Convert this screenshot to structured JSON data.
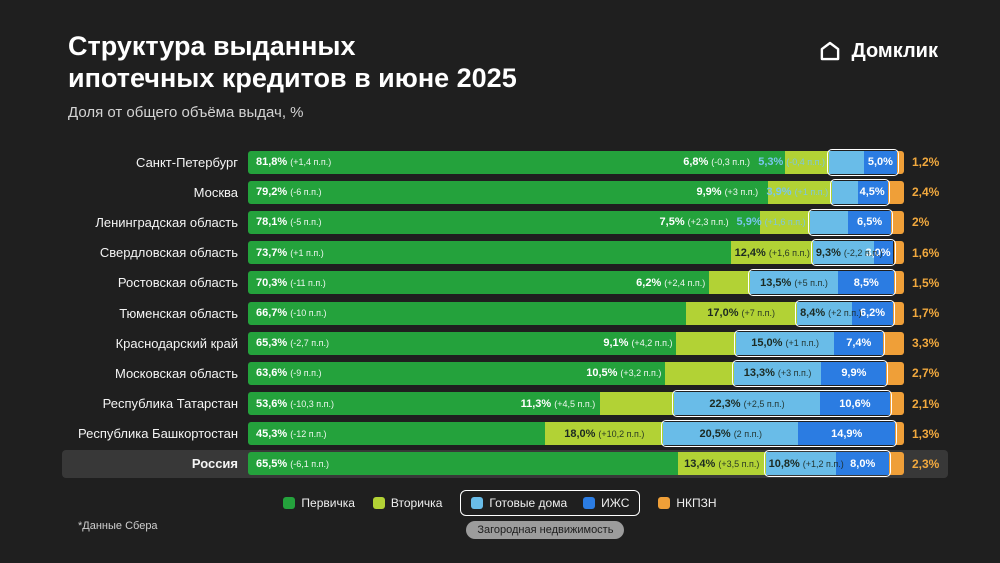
{
  "header": {
    "title_line1": "Структура выданных",
    "title_line2": "ипотечных кредитов в июне 2025",
    "subtitle": "Доля от общего объёма выдач, %",
    "brand": "Домклик"
  },
  "footnote": "*Данные Сбера",
  "legend": {
    "group_label": "Загородная недвижимость"
  },
  "chart_data": {
    "type": "bar",
    "orientation": "horizontal",
    "stacked": true,
    "unit": "%",
    "xlim": [
      0,
      100
    ],
    "title": "Структура выданных ипотечных кредитов в июне 2025",
    "subtitle": "Доля от общего объёма выдач, %",
    "legend_position": "bottom",
    "series_names": [
      "Первичка",
      "Вторичка",
      "Готовые дома",
      "ИЖС",
      "НКПЗН"
    ],
    "series_keys": [
      "pervichka",
      "vtorichka",
      "gotovye_doma",
      "izhs",
      "nkpzn"
    ],
    "suburban_group": {
      "label": "Загородная недвижимость",
      "members": [
        "Готовые дома",
        "ИЖС"
      ]
    },
    "colors": {
      "pervichka": "#24a23c",
      "vtorichka": "#b2d235",
      "gotovye_doma": "#69bce8",
      "izhs": "#2b7ce2",
      "nkpzn": "#ef9f38",
      "nkpzn_label": "#f2a93e",
      "background": "#1f1f1f"
    },
    "rows": [
      {
        "region": "Санкт-Петербург",
        "values": [
          81.8,
          6.8,
          5.3,
          5.0,
          1.2
        ],
        "labels": [
          "81,8%",
          "6,8%",
          "5,3%",
          "5,0%",
          "1,2%"
        ],
        "deltas": [
          "(+1,4 п.п.)",
          "(-0,3 п.п.)",
          "(-0,4 п.п.)",
          "",
          ""
        ],
        "highlight": false
      },
      {
        "region": "Москва",
        "values": [
          79.2,
          9.9,
          3.9,
          4.5,
          2.4
        ],
        "labels": [
          "79,2%",
          "9,9%",
          "3,9%",
          "4,5%",
          "2,4%"
        ],
        "deltas": [
          "(-6 п.п.)",
          "(+3 п.п.)",
          "(+1 п.п.)",
          "",
          ""
        ],
        "highlight": false
      },
      {
        "region": "Ленинградская область",
        "values": [
          78.1,
          7.5,
          5.9,
          6.5,
          2.0
        ],
        "labels": [
          "78,1%",
          "7,5%",
          "5,9%",
          "6,5%",
          "2%"
        ],
        "deltas": [
          "(-5 п.п.)",
          "(+2,3 п.п.)",
          "(+1,6 п.п.)",
          "",
          ""
        ],
        "highlight": false
      },
      {
        "region": "Свердловская область",
        "values": [
          73.7,
          12.4,
          9.3,
          3.0,
          1.6
        ],
        "labels": [
          "73,7%",
          "12,4%",
          "9,3%",
          "3,0%",
          "1,6%"
        ],
        "deltas": [
          "(+1 п.п.)",
          "(+1,6 п.п.)",
          "(-2,2 п.п.)",
          "",
          ""
        ],
        "highlight": false
      },
      {
        "region": "Ростовская область",
        "values": [
          70.3,
          6.2,
          13.5,
          8.5,
          1.5
        ],
        "labels": [
          "70,3%",
          "6,2%",
          "13,5%",
          "8,5%",
          "1,5%"
        ],
        "deltas": [
          "(-11 п.п.)",
          "(+2,4 п.п.)",
          "(+5 п.п.)",
          "",
          ""
        ],
        "highlight": false
      },
      {
        "region": "Тюменская область",
        "values": [
          66.7,
          17.0,
          8.4,
          6.2,
          1.7
        ],
        "labels": [
          "66,7%",
          "17,0%",
          "8,4%",
          "6,2%",
          "1,7%"
        ],
        "deltas": [
          "(-10 п.п.)",
          "(+7 п.п.)",
          "(+2 п.п.)",
          "",
          ""
        ],
        "highlight": false
      },
      {
        "region": "Краснодарский край",
        "values": [
          65.3,
          9.1,
          15.0,
          7.4,
          3.3
        ],
        "labels": [
          "65,3%",
          "9,1%",
          "15,0%",
          "7,4%",
          "3,3%"
        ],
        "deltas": [
          "(-2,7 п.п.)",
          "(+4,2 п.п.)",
          "(+1 п.п.)",
          "",
          ""
        ],
        "highlight": false
      },
      {
        "region": "Московская область",
        "values": [
          63.6,
          10.5,
          13.3,
          9.9,
          2.7
        ],
        "labels": [
          "63,6%",
          "10,5%",
          "13,3%",
          "9,9%",
          "2,7%"
        ],
        "deltas": [
          "(-9 п.п.)",
          "(+3,2 п.п.)",
          "(+3 п.п.)",
          "",
          ""
        ],
        "highlight": false
      },
      {
        "region": "Республика Татарстан",
        "values": [
          53.6,
          11.3,
          22.3,
          10.6,
          2.1
        ],
        "labels": [
          "53,6%",
          "11,3%",
          "22,3%",
          "10,6%",
          "2,1%"
        ],
        "deltas": [
          "(-10,3 п.п.)",
          "(+4,5 п.п.)",
          "(+2,5 п.п.)",
          "",
          ""
        ],
        "highlight": false
      },
      {
        "region": "Республика Башкортостан",
        "values": [
          45.3,
          18.0,
          20.5,
          14.9,
          1.3
        ],
        "labels": [
          "45,3%",
          "18,0%",
          "20,5%",
          "14,9%",
          "1,3%"
        ],
        "deltas": [
          "(-12 п.п.)",
          "(+10,2 п.п.)",
          "(2 п.п.)",
          "",
          ""
        ],
        "highlight": false
      },
      {
        "region": "Россия",
        "values": [
          65.5,
          13.4,
          10.8,
          8.0,
          2.3
        ],
        "labels": [
          "65,5%",
          "13,4%",
          "10,8%",
          "8,0%",
          "2,3%"
        ],
        "deltas": [
          "(-6,1 п.п.)",
          "(+3,5 п.п.)",
          "(+1,2 п.п.)",
          "",
          ""
        ],
        "highlight": true
      }
    ]
  }
}
